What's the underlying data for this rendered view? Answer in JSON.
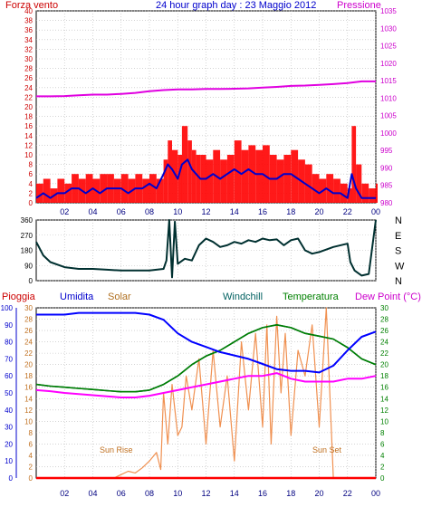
{
  "header": {
    "left_label": "Forza vento",
    "left_unit_glyph": "",
    "title": "24 hour graph day : 23 Maggio 2012",
    "right_label": "Pressione"
  },
  "labels": {
    "pioggia": "Pioggia",
    "umidita": "Umidita",
    "solar": "Solar",
    "windchill": "Windchill",
    "temperatura": "Temperatura",
    "dewpoint": "Dew Point (°C)",
    "sun_rise": "Sun Rise",
    "sun_set": "Sun Set"
  },
  "colors": {
    "wind_gust": "#ff0000",
    "wind_avg": "#0000cc",
    "pressure": "#e000e0",
    "direction": "#003030",
    "humidity": "#0000ff",
    "solar": "#f09050",
    "windchill": "#006060",
    "temperature": "#008000",
    "dewpoint": "#ff00ff",
    "rain": "#ff0000",
    "left_axis": "#cc0000",
    "right_axis": "#cc00cc",
    "bottom_right_axis": "#008000",
    "bottom_left_axis": "#0000cc",
    "grid": "#bbbbbb"
  },
  "chart_data": [
    {
      "type": "line",
      "name": "wind-pressure",
      "x_ticks": [
        "02",
        "04",
        "06",
        "08",
        "10",
        "12",
        "14",
        "16",
        "18",
        "20",
        "22",
        "00"
      ],
      "y_left_ticks": [
        "0",
        "2",
        "4",
        "6",
        "8",
        "10",
        "12",
        "14",
        "16",
        "18",
        "20",
        "22",
        "24",
        "26",
        "28",
        "30",
        "32",
        "34",
        "36",
        "38",
        "40"
      ],
      "y_right_ticks": [
        "980",
        "985",
        "990",
        "995",
        "1000",
        "1005",
        "1010",
        "1015",
        "1020",
        "1025",
        "1030",
        "1035"
      ],
      "ylim_left": [
        0,
        40
      ],
      "ylim_right": [
        980,
        1035
      ],
      "xlim": [
        0,
        24
      ],
      "series": [
        {
          "key": "gust",
          "x": [
            0.0,
            0.5,
            1.0,
            1.5,
            2.0,
            2.5,
            3.0,
            3.5,
            4.0,
            4.5,
            5.0,
            5.5,
            6.0,
            6.5,
            7.0,
            7.5,
            8.0,
            8.5,
            9.0,
            9.3,
            9.6,
            10.0,
            10.3,
            10.7,
            11.0,
            11.3,
            11.6,
            12.0,
            12.5,
            13.0,
            13.5,
            14.0,
            14.5,
            15.0,
            15.5,
            16.0,
            16.5,
            17.0,
            17.5,
            18.0,
            18.5,
            19.0,
            19.5,
            20.0,
            20.5,
            21.0,
            21.5,
            22.0,
            22.3,
            22.6,
            23.0,
            23.5,
            24.0
          ],
          "values": [
            4,
            5,
            3,
            5,
            4,
            6,
            5,
            6,
            5,
            6,
            6,
            5,
            6,
            5,
            6,
            5,
            6,
            5,
            9,
            13,
            11,
            10,
            16,
            13,
            11,
            10,
            10,
            9,
            11,
            9,
            10,
            13,
            11,
            12,
            11,
            12,
            10,
            9,
            10,
            11,
            9,
            8,
            6,
            5,
            6,
            5,
            4,
            3,
            16,
            8,
            4,
            3,
            4
          ]
        },
        {
          "key": "average",
          "x": [
            0.0,
            0.5,
            1.0,
            1.5,
            2.0,
            2.5,
            3.0,
            3.5,
            4.0,
            4.5,
            5.0,
            5.5,
            6.0,
            6.5,
            7.0,
            7.5,
            8.0,
            8.5,
            9.0,
            9.3,
            9.6,
            10.0,
            10.3,
            10.7,
            11.0,
            11.3,
            11.6,
            12.0,
            12.5,
            13.0,
            13.5,
            14.0,
            14.5,
            15.0,
            15.5,
            16.0,
            16.5,
            17.0,
            17.5,
            18.0,
            18.5,
            19.0,
            19.5,
            20.0,
            20.5,
            21.0,
            21.5,
            22.0,
            22.3,
            22.6,
            23.0,
            23.5,
            24.0
          ],
          "values": [
            1,
            2,
            1,
            2,
            2,
            3,
            3,
            2,
            3,
            2,
            3,
            3,
            3,
            2,
            3,
            3,
            4,
            3,
            6,
            8,
            7,
            5,
            8,
            9,
            7,
            6,
            5,
            5,
            6,
            5,
            6,
            7,
            6,
            7,
            6,
            6,
            5,
            5,
            6,
            6,
            5,
            4,
            3,
            2,
            3,
            2,
            2,
            1,
            6,
            3,
            1,
            1,
            1
          ]
        },
        {
          "key": "pressure",
          "x": [
            0,
            1,
            2,
            3,
            4,
            5,
            6,
            7,
            8,
            9,
            10,
            11,
            12,
            13,
            14,
            15,
            16,
            17,
            18,
            19,
            20,
            21,
            22,
            23,
            24
          ],
          "values": [
            1010.5,
            1010.5,
            1010.6,
            1010.8,
            1011.0,
            1011.0,
            1011.2,
            1011.5,
            1012.0,
            1012.3,
            1012.5,
            1012.5,
            1012.6,
            1012.6,
            1012.7,
            1012.8,
            1013.0,
            1013.2,
            1013.5,
            1013.6,
            1013.8,
            1014.0,
            1014.3,
            1014.8,
            1014.8
          ]
        }
      ]
    },
    {
      "type": "line",
      "name": "wind-direction",
      "y_left_ticks": [
        "0",
        "90",
        "180",
        "270",
        "360"
      ],
      "y_right_ticks": [
        "N",
        "W",
        "S",
        "E",
        "N"
      ],
      "ylim": [
        0,
        360
      ],
      "xlim": [
        0,
        24
      ],
      "series": [
        {
          "key": "direction",
          "x": [
            0.0,
            0.5,
            1.0,
            2.0,
            3.0,
            4.0,
            5.0,
            6.0,
            7.0,
            7.5,
            8.0,
            8.5,
            9.0,
            9.2,
            9.4,
            9.6,
            9.8,
            10.0,
            10.5,
            11.0,
            11.5,
            12.0,
            12.5,
            13.0,
            13.5,
            14.0,
            14.5,
            15.0,
            15.5,
            16.0,
            16.5,
            17.0,
            17.5,
            18.0,
            18.5,
            19.0,
            19.5,
            20.0,
            21.0,
            22.0,
            22.2,
            22.5,
            23.0,
            23.5,
            24.0
          ],
          "values": [
            230,
            150,
            110,
            80,
            70,
            70,
            65,
            60,
            60,
            60,
            60,
            65,
            70,
            120,
            360,
            20,
            350,
            100,
            130,
            120,
            210,
            250,
            230,
            200,
            210,
            230,
            220,
            240,
            230,
            250,
            240,
            245,
            210,
            240,
            250,
            180,
            160,
            170,
            200,
            220,
            110,
            60,
            30,
            40,
            360
          ]
        }
      ]
    },
    {
      "type": "line",
      "name": "temp-humidity-solar",
      "y_left_ticks": [
        "0",
        "10",
        "20",
        "30",
        "40",
        "50",
        "60",
        "70",
        "80",
        "90",
        "100"
      ],
      "y_left2_ticks": [
        "0",
        "2",
        "4",
        "6",
        "8",
        "10",
        "12",
        "14",
        "16",
        "18",
        "20",
        "22",
        "24",
        "26",
        "28",
        "30"
      ],
      "y_right_ticks": [
        "0",
        "2",
        "4",
        "6",
        "8",
        "10",
        "12",
        "14",
        "16",
        "18",
        "20",
        "22",
        "24",
        "26",
        "28",
        "30"
      ],
      "ylim_left": [
        0,
        100
      ],
      "ylim_temp": [
        0,
        30
      ],
      "xlim": [
        0,
        24
      ],
      "series": [
        {
          "key": "humidity",
          "x": [
            0,
            1,
            2,
            3,
            4,
            5,
            6,
            7,
            8,
            9,
            10,
            11,
            12,
            13,
            14,
            15,
            16,
            17,
            18,
            19,
            20,
            21,
            22,
            23,
            24
          ],
          "values": [
            96,
            96,
            96,
            97,
            97,
            97,
            97,
            97,
            96,
            93,
            85,
            80,
            77,
            74,
            72,
            70,
            67,
            64,
            63,
            63,
            62,
            66,
            75,
            83,
            86
          ]
        },
        {
          "key": "temperature",
          "x": [
            0,
            1,
            2,
            3,
            4,
            5,
            6,
            7,
            8,
            9,
            10,
            11,
            12,
            13,
            14,
            15,
            16,
            17,
            18,
            19,
            20,
            21,
            22,
            23,
            24
          ],
          "values": [
            16.5,
            16.2,
            16.0,
            15.8,
            15.6,
            15.4,
            15.2,
            15.2,
            15.5,
            16.5,
            18.0,
            20.0,
            21.5,
            22.5,
            24.0,
            25.5,
            26.5,
            27.0,
            26.5,
            25.5,
            25.0,
            24.5,
            23.0,
            21.0,
            20.0
          ]
        },
        {
          "key": "windchill",
          "x": [
            0,
            1,
            2,
            3,
            4,
            5,
            6,
            7,
            8,
            9,
            10,
            11,
            12,
            13,
            14,
            15,
            16,
            17,
            18,
            19,
            20,
            21,
            22,
            23,
            24
          ],
          "values": [
            16.5,
            16.2,
            16.0,
            15.8,
            15.6,
            15.4,
            15.2,
            15.2,
            15.5,
            16.5,
            18.0,
            20.0,
            21.5,
            22.5,
            24.0,
            25.5,
            26.5,
            27.0,
            26.5,
            25.5,
            25.0,
            24.5,
            23.0,
            21.0,
            20.0
          ]
        },
        {
          "key": "dewpoint",
          "x": [
            0,
            1,
            2,
            3,
            4,
            5,
            6,
            7,
            8,
            9,
            10,
            11,
            12,
            13,
            14,
            15,
            16,
            17,
            18,
            19,
            20,
            21,
            22,
            23,
            24
          ],
          "values": [
            15.5,
            15.3,
            15.0,
            14.8,
            14.6,
            14.4,
            14.2,
            14.2,
            14.5,
            15.0,
            15.5,
            16.0,
            16.5,
            17.0,
            17.5,
            18.0,
            18.0,
            18.5,
            17.5,
            17.0,
            17.0,
            17.0,
            17.5,
            17.5,
            18.0
          ]
        },
        {
          "key": "solar",
          "x": [
            5.5,
            6.0,
            6.5,
            7.0,
            7.5,
            8.0,
            8.5,
            8.8,
            9.0,
            9.3,
            9.6,
            10.0,
            10.3,
            10.6,
            11.0,
            11.5,
            12.0,
            12.5,
            13.0,
            13.5,
            14.0,
            14.5,
            15.0,
            15.5,
            16.0,
            16.3,
            16.6,
            17.0,
            17.3,
            17.6,
            18.0,
            18.5,
            19.0,
            19.5,
            20.0,
            20.5,
            21.0
          ],
          "values": [
            0,
            2,
            4,
            3,
            6,
            10,
            15,
            5,
            50,
            20,
            55,
            25,
            30,
            60,
            40,
            70,
            20,
            75,
            30,
            60,
            10,
            80,
            40,
            85,
            30,
            90,
            20,
            95,
            50,
            85,
            25,
            75,
            60,
            90,
            30,
            100,
            0
          ]
        },
        {
          "key": "rain",
          "x": [
            0,
            24
          ],
          "values": [
            0,
            0
          ]
        }
      ]
    }
  ]
}
